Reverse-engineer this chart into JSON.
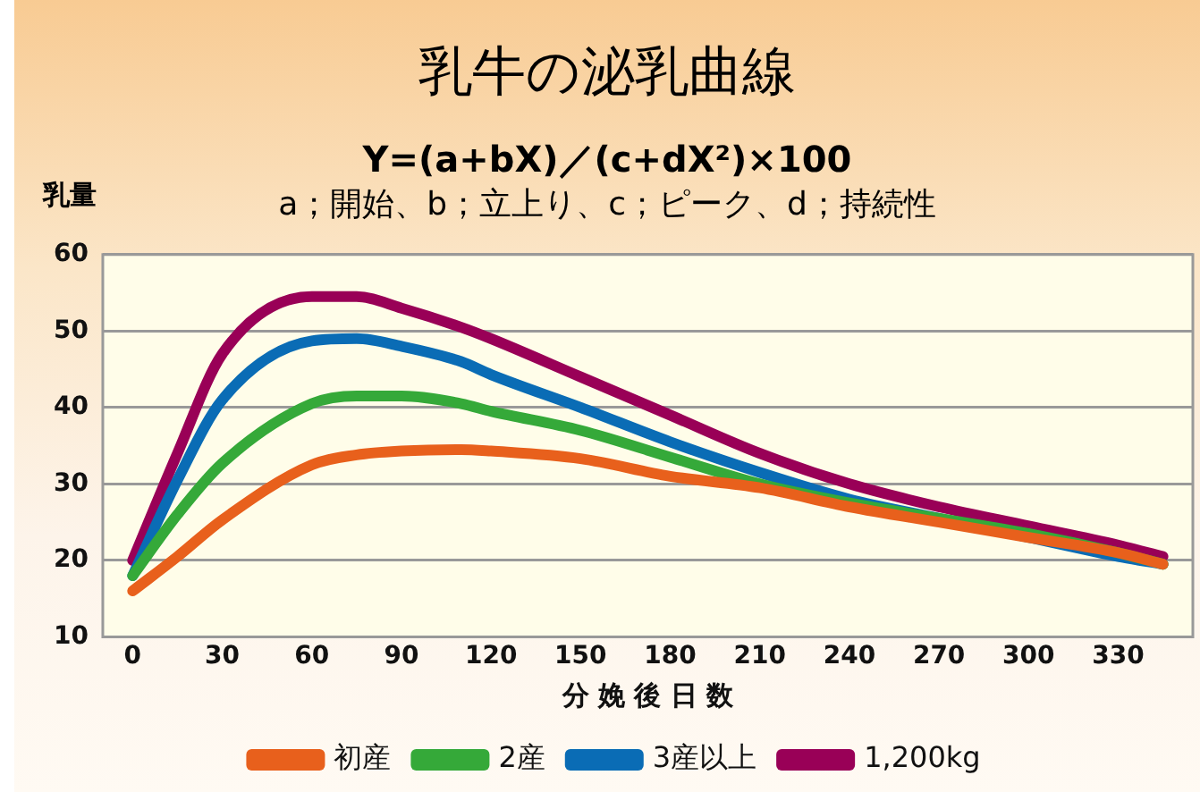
{
  "chart_data": {
    "type": "line",
    "title": "乳牛の泌乳曲線",
    "subtitle": "Y=(a+bX)／(c+dX²)×100",
    "annotations": [
      "a；開始、b；立上り、c；ピーク、d；持続性"
    ],
    "xlabel": "分 娩 後 日 数",
    "ylabel": "乳量",
    "xlim": [
      -10,
      355
    ],
    "xticks": [
      0,
      30,
      60,
      90,
      120,
      150,
      180,
      210,
      240,
      270,
      300,
      330
    ],
    "ylim": [
      10,
      60
    ],
    "yticks": [
      10,
      20,
      30,
      40,
      50,
      60
    ],
    "x": [
      0,
      15,
      30,
      60,
      75,
      90,
      110,
      120,
      150,
      180,
      210,
      240,
      270,
      300,
      330,
      345
    ],
    "series": [
      {
        "name": "初産",
        "color": "#e8601c",
        "values": [
          16,
          20.5,
          25.3,
          32.5,
          33.8,
          34.3,
          34.5,
          34.3,
          33.3,
          31,
          29.5,
          27,
          25,
          23,
          21,
          19.5
        ]
      },
      {
        "name": "2産",
        "color": "#35a939",
        "values": [
          18,
          26,
          32.7,
          40.5,
          41.5,
          41.5,
          40.5,
          39.5,
          37,
          33.5,
          30,
          27.5,
          25.5,
          23.5,
          21,
          19.5
        ]
      },
      {
        "name": "3産以上",
        "color": "#0a6cb5",
        "values": [
          18,
          30.5,
          41,
          48.7,
          49,
          48,
          46,
          44.3,
          40,
          35.5,
          31.5,
          28,
          25.5,
          23,
          20.5,
          19.5
        ]
      },
      {
        "name": "1,200kg",
        "color": "#990057",
        "values": [
          20,
          34,
          47,
          54.5,
          54.5,
          53,
          50.5,
          49,
          44,
          39,
          34,
          30,
          27,
          24.5,
          22,
          20.5
        ]
      }
    ],
    "grid": "y",
    "legend": "bottom",
    "marker": "none",
    "line_style": "solid"
  }
}
